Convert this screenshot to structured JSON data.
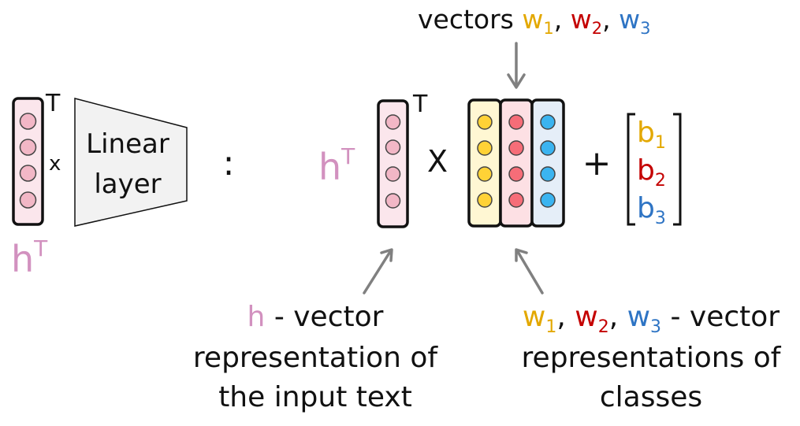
{
  "colors": {
    "black": "#111111",
    "pink_text": "#d291bf",
    "pink_fill": "#fbe6ec",
    "pink_dot": "#f2b7c6",
    "yellow_text": "#e3a800",
    "yellow_fill": "#fff7d3",
    "yellow_dot": "#ffd236",
    "red_text": "#c40000",
    "red_fill": "#fde0e4",
    "red_dot": "#f66d78",
    "blue_text": "#2e74c4",
    "blue_fill": "#e5eef8",
    "blue_dot": "#3bb4f0",
    "gray_arrow": "#808080",
    "trap_fill": "#f2f2f2"
  },
  "left": {
    "transpose_mark": "T",
    "times": "x",
    "linear_line1": "Linear",
    "linear_line2": "layer",
    "h_label": "h",
    "h_superscript": "T",
    "colon": ":"
  },
  "right": {
    "h_label": "h",
    "h_superscript": "T",
    "transpose_mark": "T",
    "times": "X",
    "plus": "+",
    "bias": [
      {
        "base": "b",
        "sub": "1",
        "color": "yellow"
      },
      {
        "base": "b",
        "sub": "2",
        "color": "red"
      },
      {
        "base": "b",
        "sub": "3",
        "color": "blue"
      }
    ]
  },
  "top_label": {
    "prefix": "vectors",
    "items": [
      {
        "base": "w",
        "sub": "1",
        "color": "yellow",
        "sep": ","
      },
      {
        "base": "w",
        "sub": "2",
        "color": "red",
        "sep": ","
      },
      {
        "base": "w",
        "sub": "3",
        "color": "blue",
        "sep": ""
      }
    ]
  },
  "h_caption": {
    "h": "h",
    "line1_rest": " - vector",
    "line2": "representation of",
    "line3": "the input text"
  },
  "w_caption": {
    "items": [
      {
        "base": "w",
        "sub": "1",
        "color": "yellow",
        "sep": ","
      },
      {
        "base": "w",
        "sub": "2",
        "color": "red",
        "sep": ","
      },
      {
        "base": "w",
        "sub": "3",
        "color": "blue",
        "sep": ""
      }
    ],
    "line1_rest": " - vector",
    "line2": "representations of",
    "line3": "classes"
  }
}
